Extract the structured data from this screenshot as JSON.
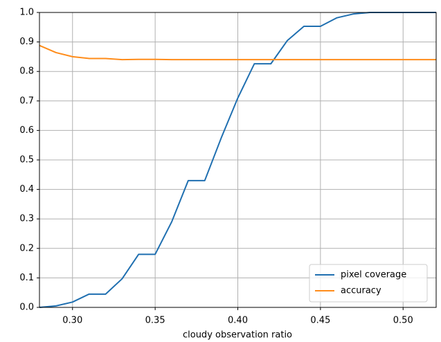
{
  "chart_data": {
    "type": "line",
    "x_label": "cloudy observation ratio",
    "x": [
      0.28,
      0.29,
      0.3,
      0.31,
      0.32,
      0.33,
      0.34,
      0.35,
      0.36,
      0.37,
      0.38,
      0.39,
      0.4,
      0.41,
      0.42,
      0.43,
      0.44,
      0.45,
      0.46,
      0.47,
      0.48,
      0.49,
      0.5,
      0.51,
      0.52
    ],
    "series": [
      {
        "name": "pixel coverage",
        "color": "#1f6fb0",
        "values": [
          0.0,
          0.005,
          0.018,
          0.045,
          0.045,
          0.097,
          0.18,
          0.18,
          0.29,
          0.43,
          0.43,
          0.575,
          0.71,
          0.826,
          0.826,
          0.905,
          0.953,
          0.953,
          0.982,
          0.995,
          1.0,
          1.0,
          1.0,
          1.0,
          1.0
        ]
      },
      {
        "name": "accuracy",
        "color": "#ff8c1a",
        "values": [
          0.888,
          0.864,
          0.85,
          0.844,
          0.844,
          0.84,
          0.841,
          0.841,
          0.84,
          0.84,
          0.84,
          0.84,
          0.84,
          0.84,
          0.84,
          0.84,
          0.84,
          0.84,
          0.84,
          0.84,
          0.84,
          0.84,
          0.84,
          0.84,
          0.84
        ]
      }
    ],
    "xlim": [
      0.28,
      0.52
    ],
    "ylim": [
      0,
      1
    ],
    "xticks": [
      {
        "value": 0.3,
        "label": "0.30"
      },
      {
        "value": 0.35,
        "label": "0.35"
      },
      {
        "value": 0.4,
        "label": "0.40"
      },
      {
        "value": 0.45,
        "label": "0.45"
      },
      {
        "value": 0.5,
        "label": "0.50"
      }
    ],
    "yticks": [
      {
        "value": 0,
        "label": "0.0"
      },
      {
        "value": 0.1,
        "label": "0.1"
      },
      {
        "value": 0.2,
        "label": "0.2"
      },
      {
        "value": 0.3,
        "label": "0.3"
      },
      {
        "value": 0.4,
        "label": "0.4"
      },
      {
        "value": 0.5,
        "label": "0.5"
      },
      {
        "value": 0.6,
        "label": "0.6"
      },
      {
        "value": 0.7,
        "label": "0.7"
      },
      {
        "value": 0.8,
        "label": "0.8"
      },
      {
        "value": 0.9,
        "label": "0.9"
      },
      {
        "value": 1,
        "label": "1.0"
      }
    ],
    "grid": true,
    "legend": "lower right"
  }
}
